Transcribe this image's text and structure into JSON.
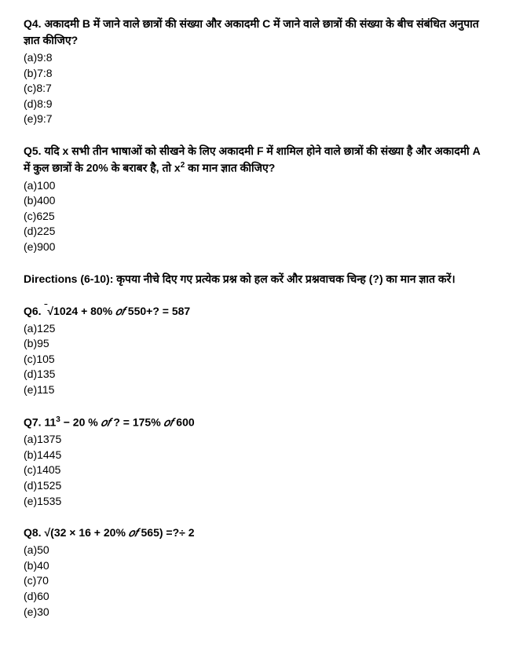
{
  "q4": {
    "prefix": "Q4.",
    "text": "अकादमी B में जाने वाले छात्रों की संख्या और अकादमी C में जाने वाले छात्रों की संख्या के बीच संबंधित अनुपात ज्ञात कीजिए?",
    "options": {
      "a": "(a)9:8",
      "b": "(b)7:8",
      "c": "(c)8:7",
      "d": "(d)8:9",
      "e": "(e)9:7"
    }
  },
  "q5": {
    "prefix": "Q5.",
    "text_part1": "यदि x सभी तीन भाषाओं को सीखने के लिए अकादमी F में शामिल होने वाले छात्रों की संख्या है और अकादमी A में कुल छात्रों के 20% के बराबर है, तो x",
    "text_part2": " का मान ज्ञात कीजिए?",
    "sup": "2",
    "options": {
      "a": "(a)100",
      "b": "(b)400",
      "c": "(c)625",
      "d": "(d)225",
      "e": "(e)900"
    }
  },
  "directions": {
    "prefix": "Directions (6-10):",
    "text": "कृपया नीचे दिए गए प्रत्येक प्रश्न को हल करें और प्रश्नवाचक चिन्ह (?) का मान ज्ञात करें।"
  },
  "q6": {
    "prefix": "Q6.",
    "expr_p1": "√1024 + 80% ",
    "expr_of": "𝑜𝑓",
    "expr_p2": " 550+? = 587",
    "options": {
      "a": "(a)125",
      "b": "(b)95",
      "c": "(c)105",
      "d": "(d)135",
      "e": "(e)115"
    }
  },
  "q7": {
    "prefix": "Q7.",
    "expr_p1": "11",
    "sup": "3",
    "expr_p2": " − 20 % ",
    "expr_of1": "𝑜𝑓",
    "expr_p3": " ? = 175% ",
    "expr_of2": "𝑜𝑓",
    "expr_p4": " 600",
    "options": {
      "a": "(a)1375",
      "b": "(b)1445",
      "c": "(c)1405",
      "d": "(d)1525",
      "e": "(e)1535"
    }
  },
  "q8": {
    "prefix": "Q8.",
    "expr_p1": "√(32 × 16 + 20% ",
    "expr_of": "𝑜𝑓",
    "expr_p2": " 565) =?÷ 2",
    "options": {
      "a": "(a)50",
      "b": "(b)40",
      "c": "(c)70",
      "d": "(d)60",
      "e": "(e)30"
    }
  }
}
